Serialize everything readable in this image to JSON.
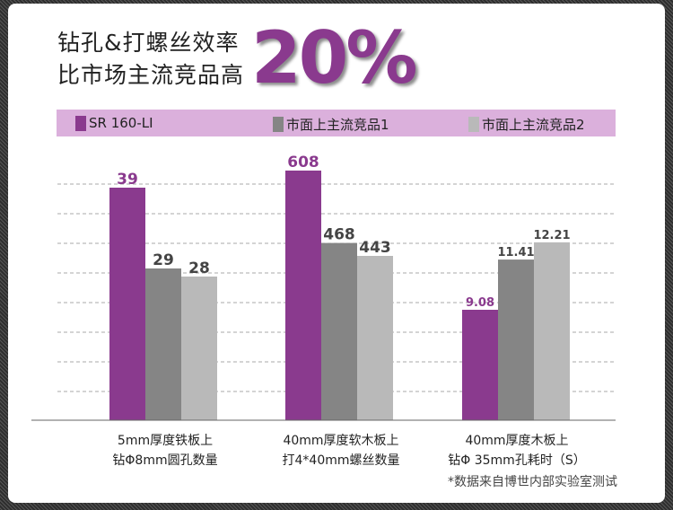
{
  "headline": {
    "line1": "钻孔&打螺丝效率",
    "line2": "比市场主流竞品高",
    "highlight": "20%"
  },
  "colors": {
    "primary": "#8a3a8e",
    "competitor1": "#858585",
    "competitor2": "#b9b9b9",
    "legend_bg": "#dbb0dc"
  },
  "chart_data": {
    "type": "bar",
    "legend_position": "top",
    "grid": true,
    "categories": [
      "5mm厚度铁板上\n钻Φ8mm圆孔数量",
      "40mm厚度软木板上\n打4*40mm螺丝数量",
      "40mm厚度木板上\n钻Φ 35mm孔耗时（S）"
    ],
    "category_lines": [
      [
        "5mm厚度铁板上",
        "钻Φ8mm圆孔数量"
      ],
      [
        "40mm厚度软木板上",
        "打4*40mm螺丝数量"
      ],
      [
        "40mm厚度木板上",
        "钻Φ 35mm孔耗时（S）"
      ]
    ],
    "series": [
      {
        "name": "SR 160-LI",
        "values": [
          39,
          608,
          9.08
        ],
        "labels": [
          "39",
          "608",
          "9.08"
        ]
      },
      {
        "name": "市面上主流竞品1",
        "values": [
          29,
          468,
          11.41
        ],
        "labels": [
          "29",
          "468",
          "11.41"
        ]
      },
      {
        "name": "市面上主流竞品2",
        "values": [
          28,
          443,
          12.21
        ],
        "labels": [
          "28",
          "443",
          "12.21"
        ]
      }
    ]
  },
  "footnote": "*数据来自博世内部实验室测试"
}
